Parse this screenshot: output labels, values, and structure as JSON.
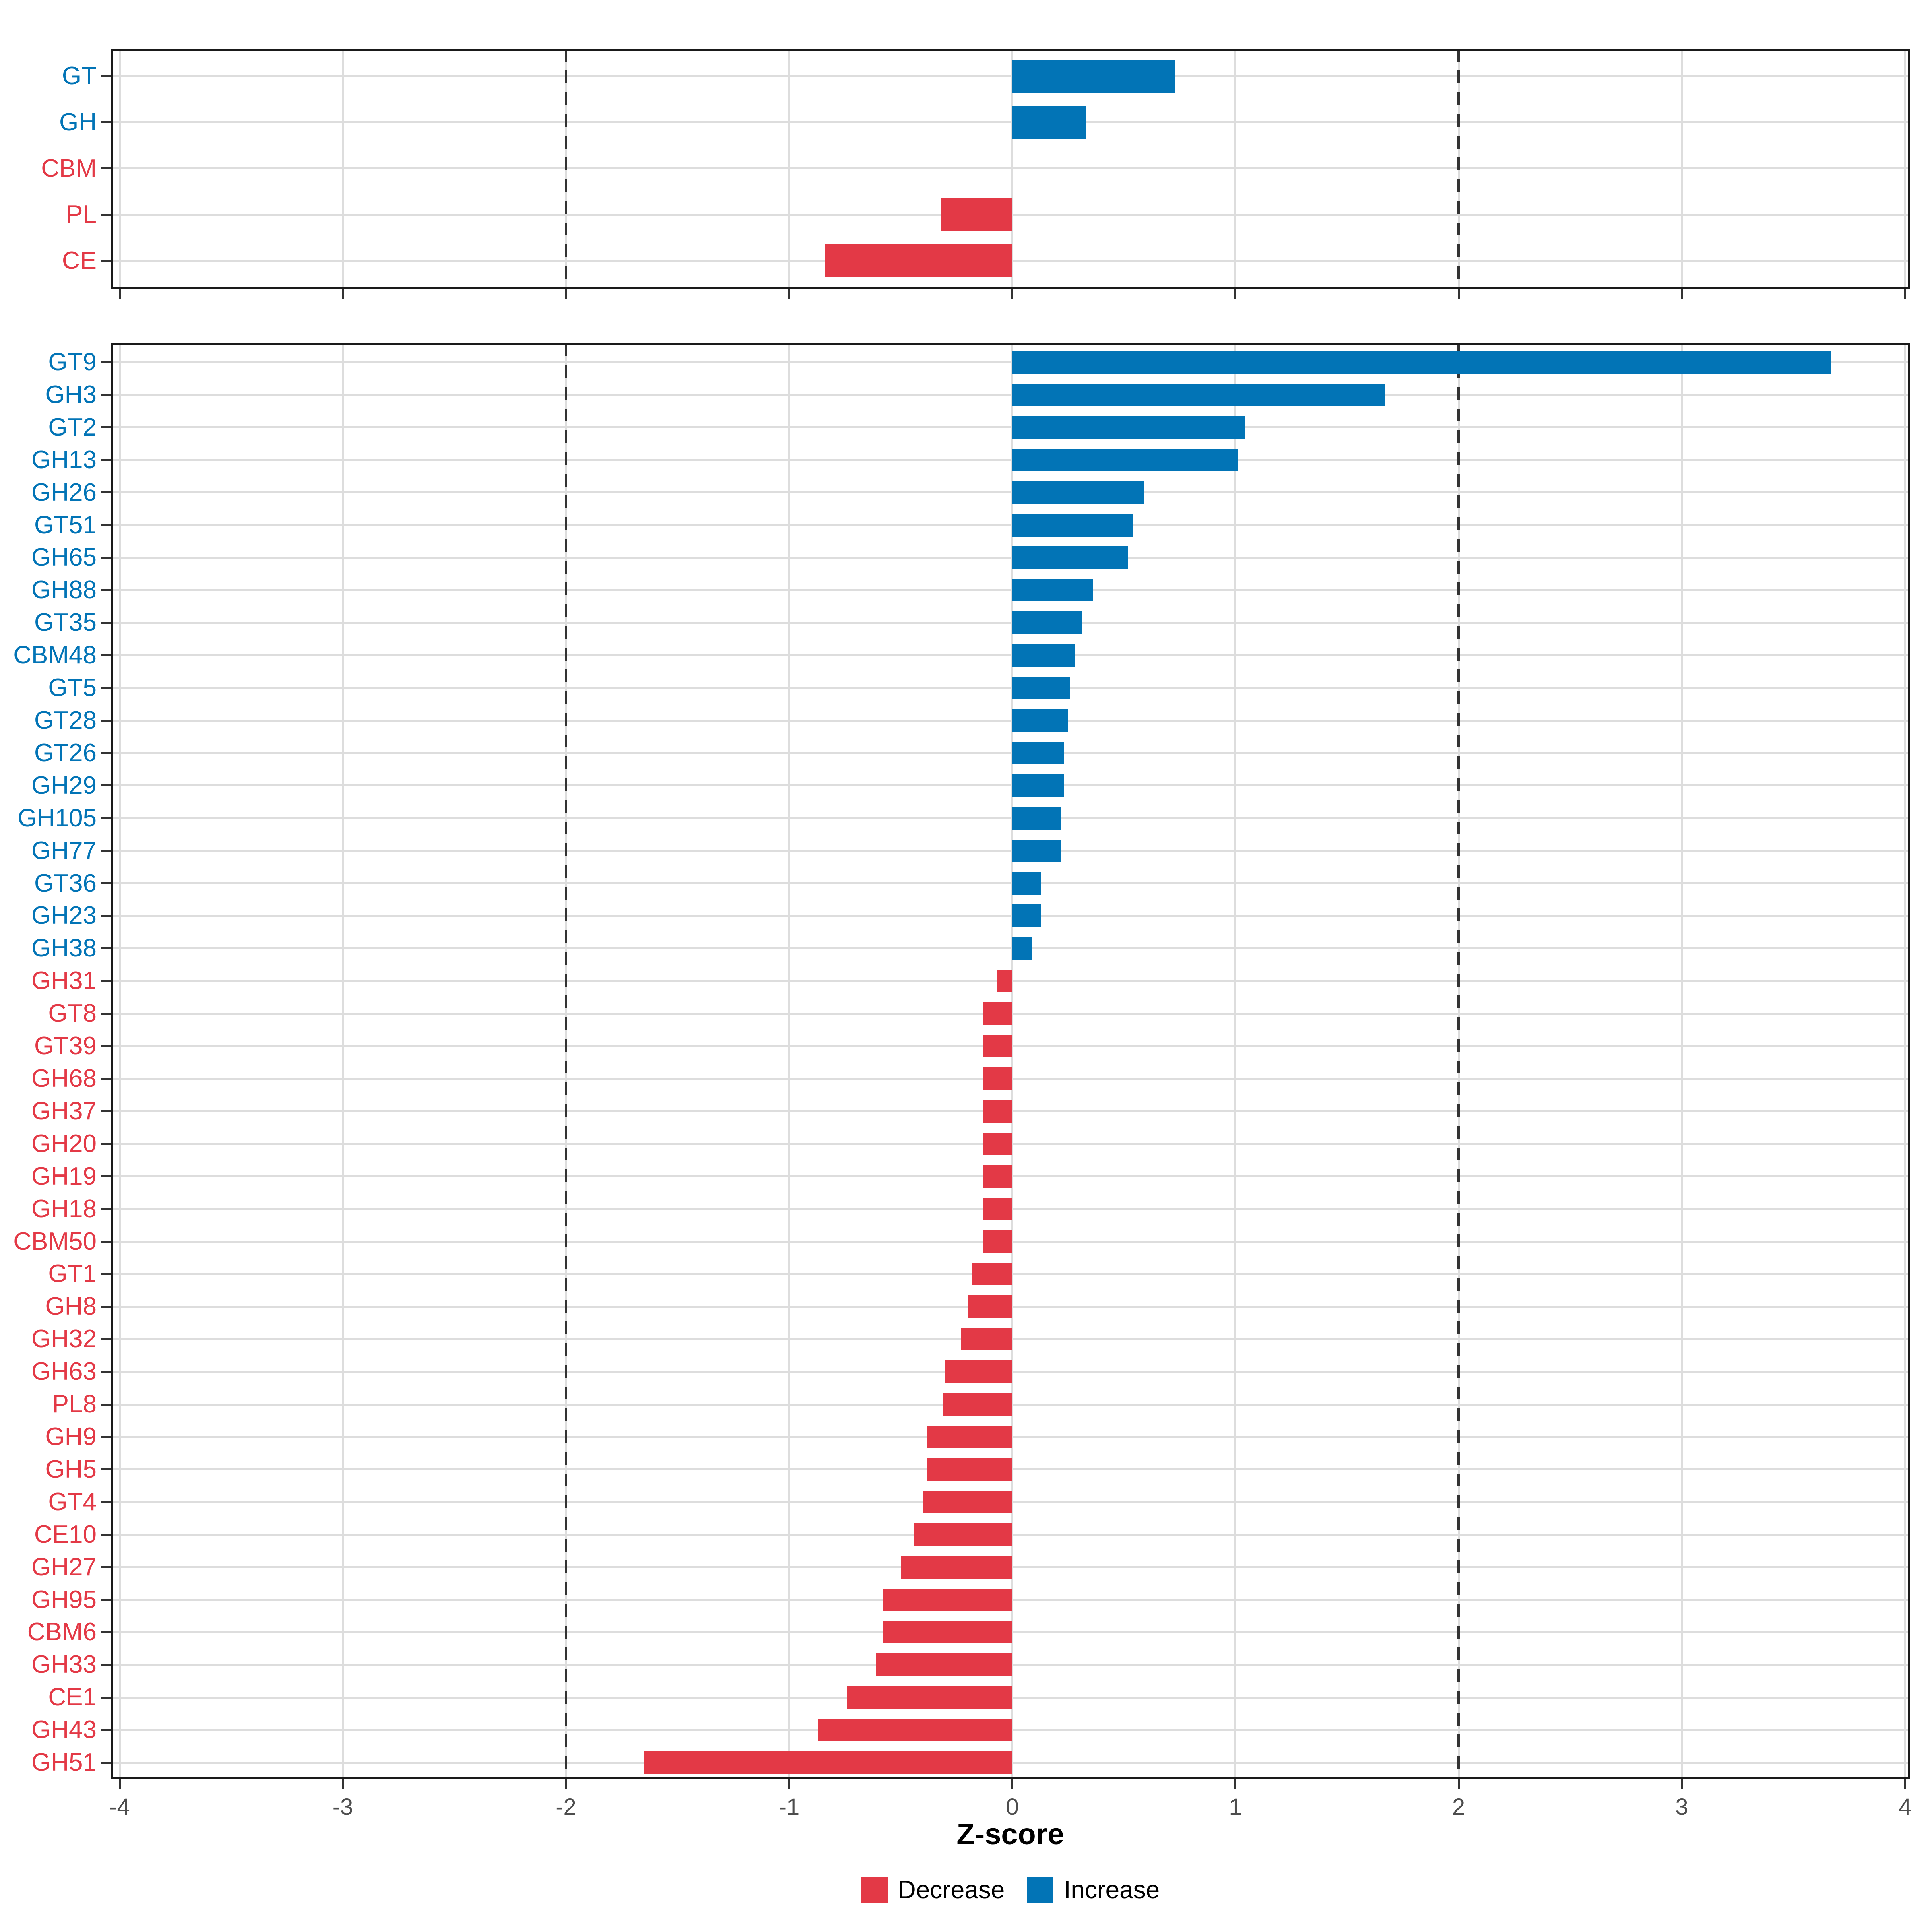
{
  "axis": {
    "title": "Z-score",
    "tick_labels": [
      "-4",
      "-3",
      "-2",
      "-1",
      "0",
      "1",
      "2",
      "3",
      "4"
    ],
    "tick_values": [
      -4,
      -3,
      -2,
      -1,
      0,
      1,
      2,
      3,
      4
    ],
    "xlim": [
      -4,
      4
    ],
    "reference_lines": [
      -2,
      2
    ]
  },
  "legend": {
    "decrease_label": "Decrease",
    "increase_label": "Increase"
  },
  "colors": {
    "increase": "#0274B6",
    "decrease": "#E33946",
    "grid": "#DDDDDD",
    "dashed_line": "#333333",
    "axis_text": "#4D4D4D",
    "tick_mark": "#333333",
    "panel_border": "#1A1A1A",
    "background": "#FFFFFF"
  },
  "chart_data": [
    {
      "id": "class-summary-panel",
      "type": "bar",
      "orientation": "horizontal",
      "xlabel": "Z-score",
      "xlim": [
        -4,
        4
      ],
      "grid": true,
      "items": [
        {
          "label": "GT",
          "value": 0.73,
          "direction": "increase"
        },
        {
          "label": "GH",
          "value": 0.33,
          "direction": "increase"
        },
        {
          "label": "CBM",
          "value": 0.0,
          "direction": "decrease"
        },
        {
          "label": "PL",
          "value": -0.32,
          "direction": "decrease"
        },
        {
          "label": "CE",
          "value": -0.84,
          "direction": "decrease"
        }
      ]
    },
    {
      "id": "family-panel",
      "type": "bar",
      "orientation": "horizontal",
      "xlabel": "Z-score",
      "xlim": [
        -4,
        4
      ],
      "grid": true,
      "items": [
        {
          "label": "GT9",
          "value": 3.67,
          "direction": "increase"
        },
        {
          "label": "GH3",
          "value": 1.67,
          "direction": "increase"
        },
        {
          "label": "GT2",
          "value": 1.04,
          "direction": "increase"
        },
        {
          "label": "GH13",
          "value": 1.01,
          "direction": "increase"
        },
        {
          "label": "GH26",
          "value": 0.59,
          "direction": "increase"
        },
        {
          "label": "GT51",
          "value": 0.54,
          "direction": "increase"
        },
        {
          "label": "GH65",
          "value": 0.52,
          "direction": "increase"
        },
        {
          "label": "GH88",
          "value": 0.36,
          "direction": "increase"
        },
        {
          "label": "GT35",
          "value": 0.31,
          "direction": "increase"
        },
        {
          "label": "CBM48",
          "value": 0.28,
          "direction": "increase"
        },
        {
          "label": "GT5",
          "value": 0.26,
          "direction": "increase"
        },
        {
          "label": "GT28",
          "value": 0.25,
          "direction": "increase"
        },
        {
          "label": "GT26",
          "value": 0.23,
          "direction": "increase"
        },
        {
          "label": "GH29",
          "value": 0.23,
          "direction": "increase"
        },
        {
          "label": "GH105",
          "value": 0.22,
          "direction": "increase"
        },
        {
          "label": "GH77",
          "value": 0.22,
          "direction": "increase"
        },
        {
          "label": "GT36",
          "value": 0.13,
          "direction": "increase"
        },
        {
          "label": "GH23",
          "value": 0.13,
          "direction": "increase"
        },
        {
          "label": "GH38",
          "value": 0.09,
          "direction": "increase"
        },
        {
          "label": "GH31",
          "value": -0.07,
          "direction": "decrease"
        },
        {
          "label": "GT8",
          "value": -0.13,
          "direction": "decrease"
        },
        {
          "label": "GT39",
          "value": -0.13,
          "direction": "decrease"
        },
        {
          "label": "GH68",
          "value": -0.13,
          "direction": "decrease"
        },
        {
          "label": "GH37",
          "value": -0.13,
          "direction": "decrease"
        },
        {
          "label": "GH20",
          "value": -0.13,
          "direction": "decrease"
        },
        {
          "label": "GH19",
          "value": -0.13,
          "direction": "decrease"
        },
        {
          "label": "GH18",
          "value": -0.13,
          "direction": "decrease"
        },
        {
          "label": "CBM50",
          "value": -0.13,
          "direction": "decrease"
        },
        {
          "label": "GT1",
          "value": -0.18,
          "direction": "decrease"
        },
        {
          "label": "GH8",
          "value": -0.2,
          "direction": "decrease"
        },
        {
          "label": "GH32",
          "value": -0.23,
          "direction": "decrease"
        },
        {
          "label": "GH63",
          "value": -0.3,
          "direction": "decrease"
        },
        {
          "label": "PL8",
          "value": -0.31,
          "direction": "decrease"
        },
        {
          "label": "GH9",
          "value": -0.38,
          "direction": "decrease"
        },
        {
          "label": "GH5",
          "value": -0.38,
          "direction": "decrease"
        },
        {
          "label": "GT4",
          "value": -0.4,
          "direction": "decrease"
        },
        {
          "label": "CE10",
          "value": -0.44,
          "direction": "decrease"
        },
        {
          "label": "GH27",
          "value": -0.5,
          "direction": "decrease"
        },
        {
          "label": "GH95",
          "value": -0.58,
          "direction": "decrease"
        },
        {
          "label": "CBM6",
          "value": -0.58,
          "direction": "decrease"
        },
        {
          "label": "GH33",
          "value": -0.61,
          "direction": "decrease"
        },
        {
          "label": "CE1",
          "value": -0.74,
          "direction": "decrease"
        },
        {
          "label": "GH43",
          "value": -0.87,
          "direction": "decrease"
        },
        {
          "label": "GH51",
          "value": -1.65,
          "direction": "decrease"
        }
      ]
    }
  ]
}
